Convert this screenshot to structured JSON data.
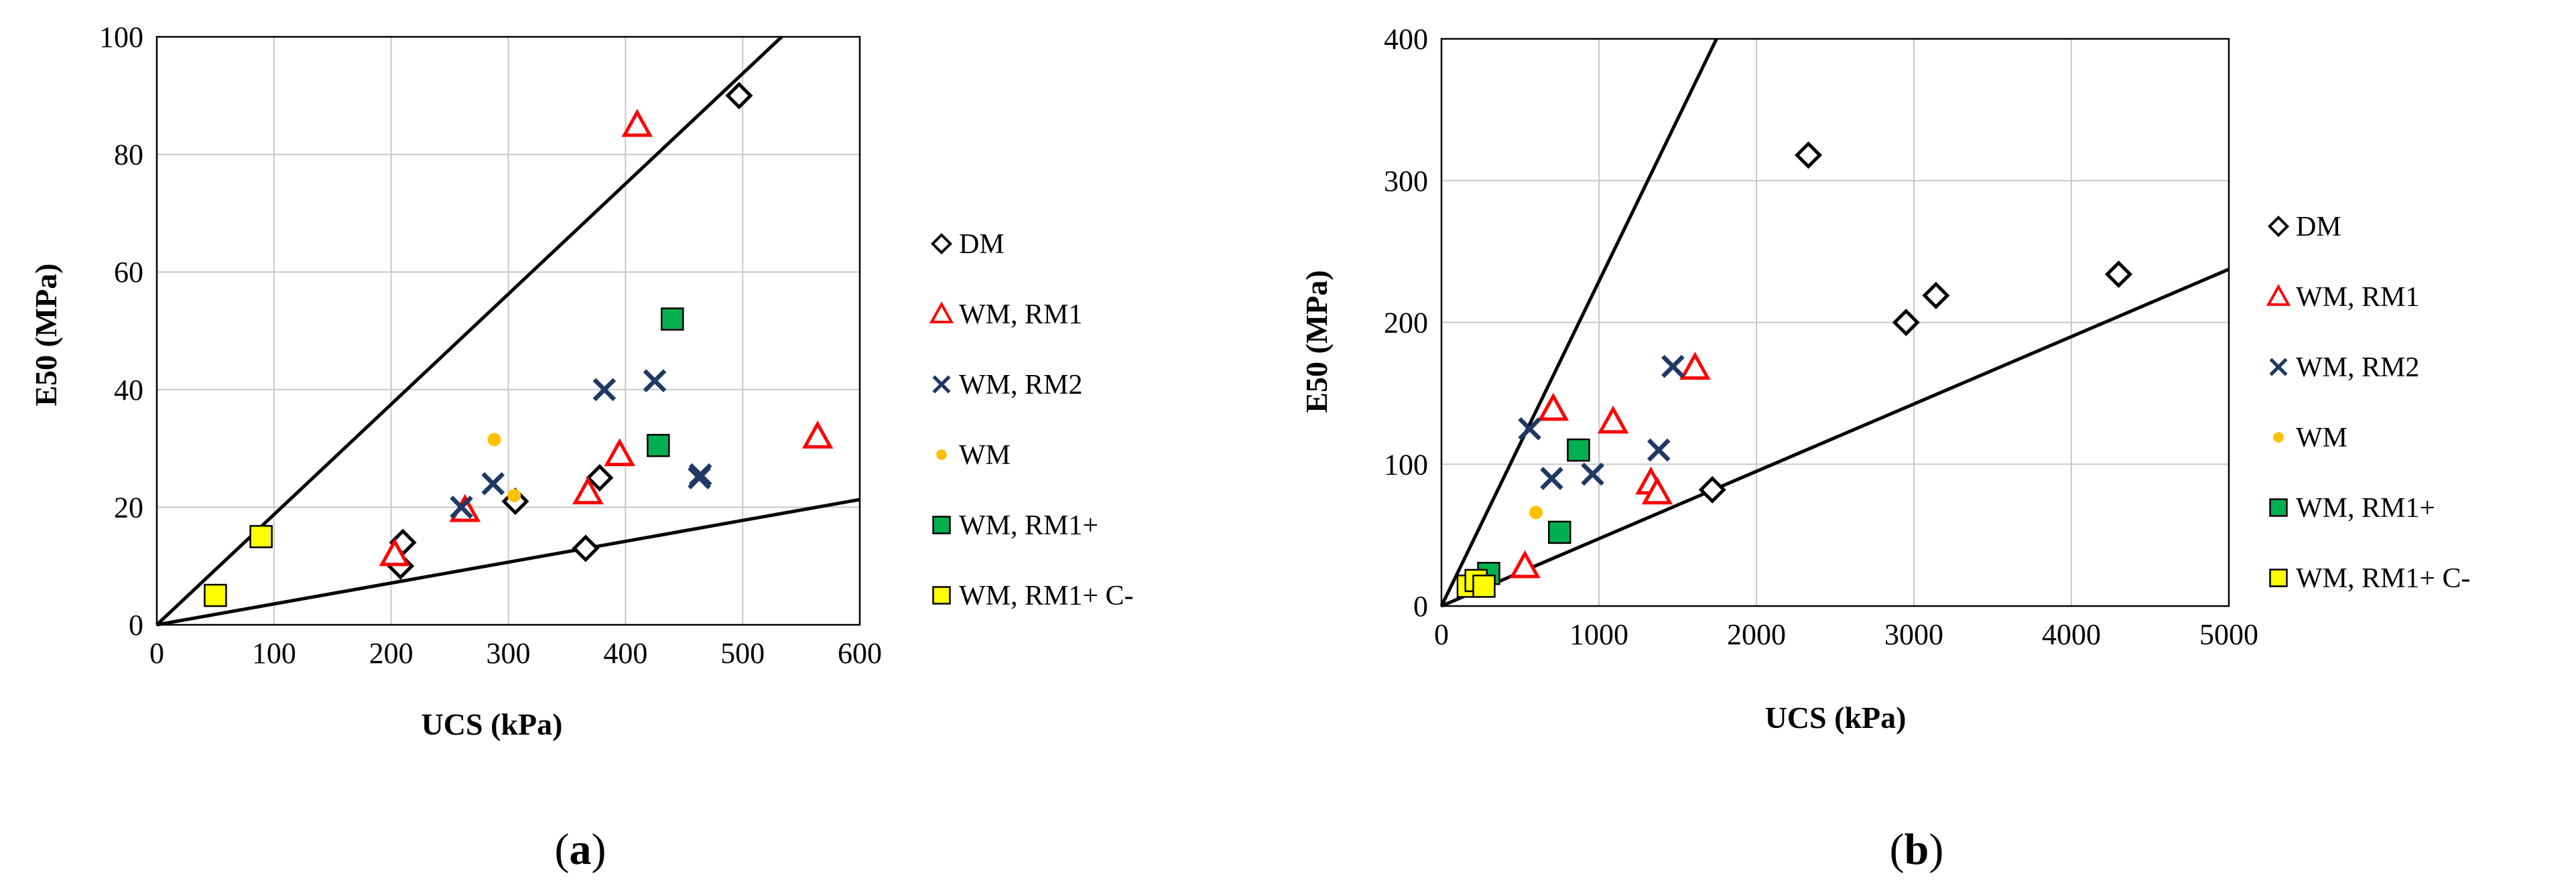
{
  "chart_data": [
    {
      "type": "scatter",
      "panel_label": {
        "open": "(",
        "letter": "a",
        "close": ")"
      },
      "xlabel": "UCS (kPa)",
      "ylabel": "E50 (MPa)",
      "xlim": [
        0,
        600
      ],
      "ylim": [
        0,
        100
      ],
      "xticks": [
        0,
        100,
        200,
        300,
        400,
        500,
        600
      ],
      "yticks": [
        0,
        20,
        40,
        60,
        80,
        100
      ],
      "grid": true,
      "legend_position": "right",
      "bound_lines": [
        {
          "name": "upper-bound-line",
          "slope": 0.1875
        },
        {
          "name": "lower-bound-line",
          "slope": 0.0355
        }
      ],
      "series": [
        {
          "name": "DM",
          "marker": "diamond",
          "color": "#000000",
          "points": [
            [
              210,
              14
            ],
            [
              208,
              10
            ],
            [
              306,
              21
            ],
            [
              366,
              13
            ],
            [
              378,
              25
            ],
            [
              497,
              90
            ]
          ]
        },
        {
          "name": "WM, RM1",
          "marker": "triangle",
          "color": "#ff0000",
          "points": [
            [
              203,
              12
            ],
            [
              263,
              19.5
            ],
            [
              368,
              22.5
            ],
            [
              395,
              29
            ],
            [
              410,
              85
            ],
            [
              564,
              32
            ]
          ]
        },
        {
          "name": "WM, RM2",
          "marker": "x",
          "color": "#1f3864",
          "points": [
            [
              260,
              20
            ],
            [
              287,
              24
            ],
            [
              382,
              40
            ],
            [
              425,
              41.5
            ],
            [
              463,
              25
            ],
            [
              464,
              25.5
            ]
          ]
        },
        {
          "name": "WM",
          "marker": "circle",
          "color": "#ffc000",
          "points": [
            [
              288,
              31.5
            ],
            [
              305,
              22
            ]
          ]
        },
        {
          "name": "WM, RM1+",
          "marker": "square",
          "color": "#00b050",
          "points": [
            [
              428,
              30.5
            ],
            [
              440,
              52
            ]
          ]
        },
        {
          "name": "WM, RM1+ C-",
          "marker": "square",
          "color": "#ffff00",
          "points": [
            [
              50,
              5
            ],
            [
              89,
              15
            ]
          ]
        }
      ]
    },
    {
      "type": "scatter",
      "panel_label": {
        "open": "(",
        "letter": "b",
        "close": ")"
      },
      "xlabel": "UCS (kPa)",
      "ylabel": "E50 (MPa)",
      "xlim": [
        0,
        5000
      ],
      "ylim": [
        0,
        400
      ],
      "xticks": [
        0,
        1000,
        2000,
        3000,
        4000,
        5000
      ],
      "yticks": [
        0,
        100,
        200,
        300,
        400
      ],
      "grid": true,
      "legend_position": "right",
      "bound_lines": [
        {
          "name": "upper-bound-line",
          "slope": 0.229
        },
        {
          "name": "lower-bound-line",
          "slope": 0.0475
        }
      ],
      "series": [
        {
          "name": "DM",
          "marker": "diamond",
          "color": "#000000",
          "points": [
            [
              1720,
              82
            ],
            [
              2330,
              318
            ],
            [
              2950,
              200
            ],
            [
              3140,
              219
            ],
            [
              4300,
              234
            ]
          ]
        },
        {
          "name": "WM, RM1",
          "marker": "triangle",
          "color": "#ff0000",
          "points": [
            [
              530,
              28
            ],
            [
              710,
              139
            ],
            [
              1090,
              130
            ],
            [
              1330,
              87
            ],
            [
              1370,
              80
            ],
            [
              1610,
              168
            ]
          ]
        },
        {
          "name": "WM, RM2",
          "marker": "x",
          "color": "#1f3864",
          "points": [
            [
              560,
              125
            ],
            [
              700,
              90
            ],
            [
              960,
              93
            ],
            [
              1380,
              110
            ],
            [
              1470,
              169
            ]
          ]
        },
        {
          "name": "WM",
          "marker": "circle",
          "color": "#ffc000",
          "points": [
            [
              600,
              66
            ]
          ]
        },
        {
          "name": "WM, RM1+",
          "marker": "square",
          "color": "#00b050",
          "points": [
            [
              300,
              23
            ],
            [
              750,
              52
            ],
            [
              870,
              110
            ]
          ]
        },
        {
          "name": "WM, RM1+ C-",
          "marker": "square",
          "color": "#ffff00",
          "points": [
            [
              170,
              14
            ],
            [
              220,
              18
            ],
            [
              270,
              14
            ]
          ]
        }
      ]
    }
  ]
}
